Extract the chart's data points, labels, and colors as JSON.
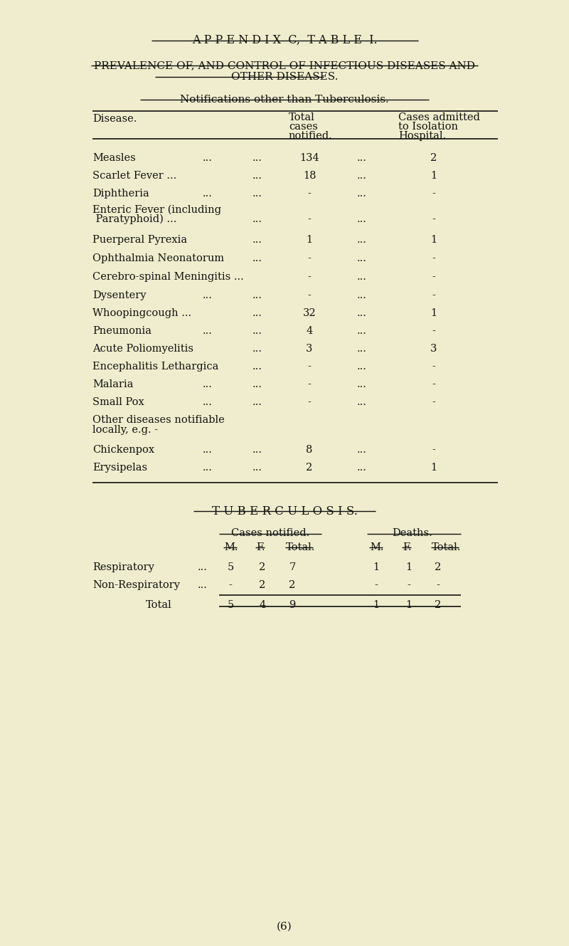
{
  "bg_color": "#f0edce",
  "text_color": "#1a1a1a",
  "appendix_title": "A P P E N D I X  C,  T A B L E  I.",
  "prevalence_line1": "PREVALENCE OF, AND CONTROL OF INFECTIOUS DISEASES AND",
  "prevalence_line2": "OTHER DISEASES.",
  "notif_subtitle": "Notifications other than Tuberculosis.",
  "tb_title": "T U B E R C U L O S I S.",
  "tb_col1": "Cases notified.",
  "tb_col2": "Deaths.",
  "tb_sub": [
    "M.",
    "F.",
    "Total.",
    "M.",
    "F.",
    "Total."
  ],
  "tb_rows": [
    [
      "Respiratory",
      "...",
      "5",
      "2",
      "7",
      "1",
      "1",
      "2"
    ],
    [
      "Non-Respiratory",
      "...",
      "-",
      "2",
      "2",
      "-",
      "-",
      "-"
    ],
    [
      "Total",
      "",
      "5",
      "4",
      "9",
      "1",
      "1",
      "2"
    ]
  ],
  "page_num": "(6)",
  "disease_rows": [
    {
      "name": "Measles",
      "dots1": true,
      "val1": "134",
      "val2": "2"
    },
    {
      "name": "Scarlet Fever ...",
      "dots1": false,
      "val1": "18",
      "val2": "1"
    },
    {
      "name": "Diphtheria",
      "dots1": true,
      "val1": "-",
      "val2": "-"
    },
    {
      "name": "Enteric Fever (including",
      "dots1": null,
      "val1": null,
      "val2": null
    },
    {
      "name": " Paratyphoid) ...",
      "dots1": false,
      "val1": "-",
      "val2": "-"
    },
    {
      "name": "Puerperal Pyrexia",
      "dots1": false,
      "val1": "1",
      "val2": "1"
    },
    {
      "name": "Ophthalmia Neonatorum",
      "dots1": false,
      "val1": "-",
      "val2": "-"
    },
    {
      "name": "Cerebro-spinal Meningitis ...",
      "dots1": null,
      "val1": "-",
      "val2": "-"
    },
    {
      "name": "Dysentery",
      "dots1": true,
      "val1": "-",
      "val2": "-"
    },
    {
      "name": "Whoopingcough ...",
      "dots1": false,
      "val1": "32",
      "val2": "1"
    },
    {
      "name": "Pneumonia",
      "dots1": true,
      "val1": "4",
      "val2": "-"
    },
    {
      "name": "Acute Poliomyelitis",
      "dots1": false,
      "val1": "3",
      "val2": "3"
    },
    {
      "name": "Encephalitis Lethargica",
      "dots1": false,
      "val1": "-",
      "val2": "-"
    },
    {
      "name": "Malaria",
      "dots1": true,
      "val1": "-",
      "val2": "-"
    },
    {
      "name": "Small Pox",
      "dots1": true,
      "val1": "-",
      "val2": "-"
    },
    {
      "name": "Other diseases notifiable",
      "dots1": null,
      "val1": null,
      "val2": null
    },
    {
      "name": "locally, e.g. -",
      "dots1": null,
      "val1": null,
      "val2": null
    },
    {
      "name": "Chickenpox",
      "dots1": true,
      "val1": "8",
      "val2": "-"
    },
    {
      "name": "Erysipelas",
      "dots1": true,
      "val1": "2",
      "val2": "1"
    }
  ]
}
